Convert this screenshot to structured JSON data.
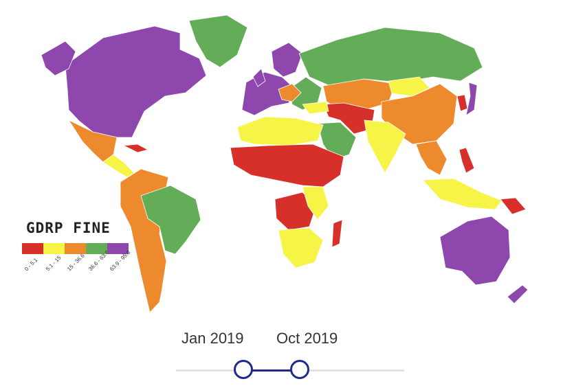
{
  "legend": {
    "title": "GDRP FINE",
    "bins": [
      {
        "label": "0 - 5.1",
        "color": "#d7302b"
      },
      {
        "label": "5.1 - 15",
        "color": "#f7f448"
      },
      {
        "label": "15 - 36.6",
        "color": "#ee8a2e"
      },
      {
        "label": "36.6 - 63.9",
        "color": "#63ad58"
      },
      {
        "label": "63.9 - 95.8",
        "color": "#8e47ad"
      }
    ]
  },
  "slider": {
    "start_label": "Jan 2019",
    "end_label": "Oct 2019",
    "start_value": 0.3,
    "end_value": 0.55
  },
  "colors": {
    "red": "#d7302b",
    "yellow": "#f7f448",
    "orange": "#ee8a2e",
    "green": "#63ad58",
    "purple": "#8e47ad",
    "slider_accent": "#1e2a8a"
  }
}
